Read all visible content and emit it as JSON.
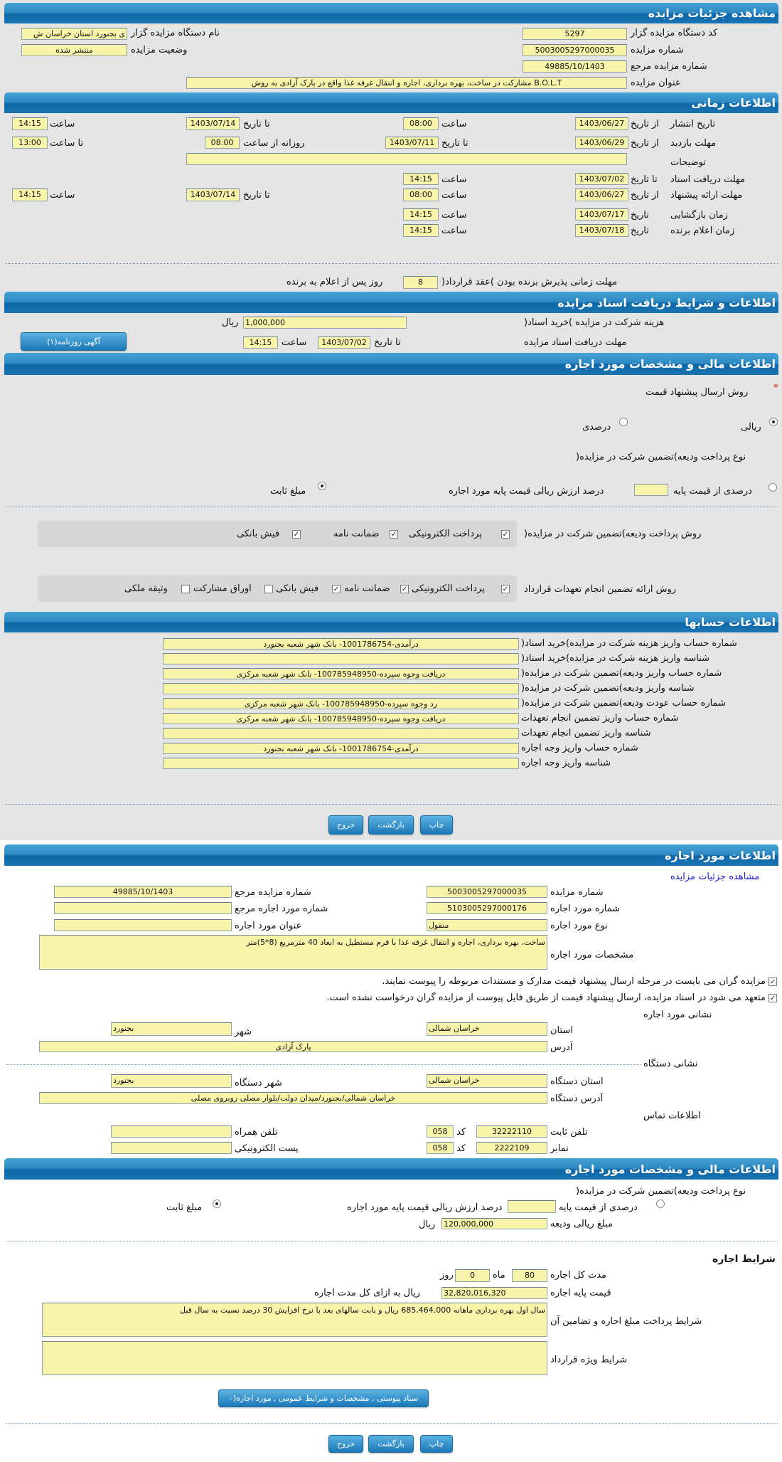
{
  "colors": {
    "header": "#1a74b2",
    "field": "#f8f4aa",
    "panel": "#e5e5e5",
    "link": "#1a1adb",
    "required": "#dd0000"
  },
  "details": {
    "header": "مشاهده جزئیات مزایده",
    "org_code": {
      "label": "کد دستگاه مزایده گزار",
      "value": "5297"
    },
    "org_name": {
      "label": "نام دستگاه مزایده گزار",
      "value": "ی بجنورد استان خراسان ش"
    },
    "auction_no": {
      "label": "شماره مزایده",
      "value": "5003005297000035"
    },
    "status": {
      "label": "وضعیت مزایده",
      "value": "منتشر شده"
    },
    "ref_no": {
      "label": "شماره مزایده مرجع",
      "value": "49885/10/1403"
    },
    "title": {
      "label": "عنوان مزایده",
      "value": "B.O.L.T مشارکت در ساخت، بهره برداری، اجاره و انتقال غرفه غذا واقع در پارک آزادی  به روش"
    }
  },
  "timing": {
    "header": "اطلاعات زمانی",
    "publish": {
      "label": "تاریخ انتشار",
      "from_label": "از تاریخ",
      "from_date": "1403/06/27",
      "from_time_label": "ساعت",
      "from_time": "08:00",
      "to_label": "تا تاریخ",
      "to_date": "1403/07/14",
      "to_time_label": "ساعت",
      "to_time": "14:15"
    },
    "visit": {
      "label": "مهلت بازدید",
      "from_label": "از تاریخ",
      "from_date": "1403/06/29",
      "to_label": "تا تاریخ",
      "to_date": "1403/07/11",
      "daily_label": "روزانه از ساعت",
      "daily_from": "08:00",
      "daily_to_label": "تا ساعت",
      "daily_to": "13:00"
    },
    "notes": {
      "label": "توضیحات",
      "value": ""
    },
    "docs": {
      "label": "مهلت دریافت اسناد",
      "to_label": "تا تاریخ",
      "date": "1403/07/02",
      "time_label": "ساعت",
      "time": "14:15"
    },
    "offer": {
      "label": "مهلت ارائه پیشنهاد",
      "from_label": "از تاریخ",
      "from_date": "1403/06/27",
      "from_time_label": "ساعت",
      "from_time": "08:00",
      "to_label": "تا تاریخ",
      "to_date": "1403/07/14",
      "to_time_label": "ساعت",
      "to_time": "14:15"
    },
    "opening": {
      "label": "زمان بازگشایی",
      "date_label": "تاریخ",
      "date": "1403/07/17",
      "time_label": "ساعت",
      "time": "14:15"
    },
    "winner": {
      "label": "زمان اعلام برنده",
      "date_label": "تاریخ",
      "date": "1403/07/18",
      "time_label": "ساعت",
      "time": "14:15"
    },
    "acceptance": {
      "label": "مهلت زمانی پذیرش برنده بودن )عقد قرارداد(",
      "value": "8",
      "suffix": "روز پس از اعلام به برنده"
    }
  },
  "docs": {
    "header": "اطلاعات و شرایط دریافت اسناد مزایده",
    "fee_label": "هزینه شرکت در مزایده )خرید اسناد(",
    "fee": "1,000,000",
    "fee_unit": "ریال",
    "deadline_label": "مهلت دریافت اسناد مزایده",
    "to_label": "تا تاریخ",
    "date": "1403/07/02",
    "time_label": "ساعت",
    "time": "14:15",
    "ad_button": "آگهی روزنامه(۱)"
  },
  "finance": {
    "header": "اطلاعات مالی و مشخصات مورد اجاره",
    "required_mark": "*",
    "price_method_label": "روش ارسال پیشنهاد قیمت",
    "price_rial": {
      "label": "ریالی",
      "checked": true
    },
    "price_percent": {
      "label": "درصدی",
      "checked": false
    },
    "deposit_type_label": "نوع پرداخت ودیعه)تضمین شرکت در مزایده(",
    "deposit_percent": {
      "label": "درصدی از قیمت پایه",
      "checked": false,
      "value": "",
      "suffix": "درصد ارزش ریالی قیمت پایه مورد اجاره"
    },
    "deposit_fixed": {
      "label": "مبلغ ثابت",
      "checked": true
    },
    "deposit_methods": {
      "label": "روش پرداخت ودیعه)تضمین شرکت در مزایده(",
      "items": [
        {
          "label": "پرداخت الکترونیکی",
          "checked": true
        },
        {
          "label": "ضمانت نامه",
          "checked": true
        },
        {
          "label": "فیش بانکی",
          "checked": true
        }
      ]
    },
    "guarantee_methods": {
      "label": "روش ارائه تضمین انجام تعهدات قرارداد",
      "items": [
        {
          "label": "پرداخت الکترونیکی",
          "checked": true
        },
        {
          "label": "ضمانت نامه",
          "checked": true
        },
        {
          "label": "فیش بانکی",
          "checked": true
        },
        {
          "label": "اوراق مشارکت",
          "checked": false
        },
        {
          "label": "وثیقه ملکی",
          "checked": false
        }
      ]
    }
  },
  "accounts": {
    "header": "اطلاعات حسابها",
    "rows": [
      {
        "label": "شماره حساب واریز هزینه شرکت در مزایده)خرید اسناد(",
        "value": "درآمدی-1001786754- بانک شهر شعبه بجنورد"
      },
      {
        "label": "شناسه واریز هزینه شرکت در مزایده)خرید اسناد(",
        "value": ""
      },
      {
        "label": "شماره حساب واریز ودیعه)تضمین شرکت در مزایده(",
        "value": "دریافت وجوه سپرده-100785948950- بانک شهر شعبه مرکزی"
      },
      {
        "label": "شناسه واریز ودیعه)تضمین شرکت در مزایده(",
        "value": ""
      },
      {
        "label": "شماره حساب عودت ودیعه)تضمین شرکت در مزایده(",
        "value": "رد وجوه سپرده-100785948950- بانک شهر شعبه مرکزی"
      },
      {
        "label": "شماره حساب واریز تضمین انجام تعهدات",
        "value": "دریافت وجوه سپرده-100785948950- بانک شهر شعبه مرکزی"
      },
      {
        "label": "شناسه واریز تضمین انجام تعهدات",
        "value": ""
      },
      {
        "label": "شماره حساب واریز وجه اجاره",
        "value": "درآمدی-1001786754- بانک شهر شعبه بجنورد"
      },
      {
        "label": "شناسه واریز وجه اجاره",
        "value": ""
      }
    ]
  },
  "buttons": {
    "print": "چاپ",
    "back": "بازگشت",
    "exit": "خروج"
  },
  "lease": {
    "header": "اطلاعات مورد اجاره",
    "details_link": "مشاهده جزئیات مزایده",
    "auction_no": {
      "label": "شماره مزایده",
      "value": "5003005297000035"
    },
    "ref_no": {
      "label": "شماره مزایده مرجع",
      "value": "49885/10/1403"
    },
    "item_no": {
      "label": "شماره مورد اجاره",
      "value": "5103005297000176"
    },
    "item_ref": {
      "label": "شماره مورد اجاره مرجع",
      "value": ""
    },
    "item_type": {
      "label": "نوع مورد اجاره",
      "value": "منقول"
    },
    "item_title": {
      "label": "عنوان مورد اجاره",
      "value": ""
    },
    "specs": {
      "label": "مشخصات مورد اجاره",
      "value": "ساخت، بهره برداری، اجاره و انتقال غرفه غذا  با فرم مستطیل به ابعاد 40 مترمربع (8*5)متر"
    },
    "checks": [
      {
        "label": "مزایده گران می بایست در مرحله ارسال پیشنهاد قیمت مدارک و مستندات مربوطه را پیوست نمایند.",
        "checked": true
      },
      {
        "label": "متعهد می شود در اسناد مزایده، ارسال پیشنهاد قیمت از طریق فایل پیوست از مزایده گران درخواست نشده است.",
        "checked": true
      }
    ],
    "address_title": "نشانی مورد اجاره",
    "province": {
      "label": "استان",
      "value": "خراسان شمالی"
    },
    "city": {
      "label": "شهر",
      "value": "بجنورد"
    },
    "address": {
      "label": "آدرس",
      "value": "پارک آزادی"
    },
    "org_address_title": "نشانی دستگاه",
    "org_province": {
      "label": "استان دستگاه",
      "value": "خراسان شمالی"
    },
    "org_city": {
      "label": "شهر دستگاه",
      "value": "بجنورد"
    },
    "org_address": {
      "label": "آدرس دستگاه",
      "value": "خراسان شمالی/بجنورد/میدان دولت/بلوار مصلی روبروی مصلی"
    },
    "contact_title": "اطلاعات تماس",
    "phone": {
      "label": "تلفن ثابت",
      "value": "32222110",
      "code_label": "کد",
      "code": "058"
    },
    "mobile": {
      "label": "تلفن همراه",
      "value": ""
    },
    "fax": {
      "label": "نمابر",
      "value": "2222109",
      "code_label": "کد",
      "code": "058"
    },
    "email": {
      "label": "پست الکترونیکی",
      "value": ""
    }
  },
  "lease_finance": {
    "header": "اطلاعات مالی و مشخصات مورد اجاره",
    "deposit_type_label": "نوع پرداخت ودیعه)تضمین شرکت در مزایده(",
    "deposit_percent": {
      "label": "درصدی از قیمت پایه",
      "checked": false,
      "value": "",
      "suffix": "درصد ارزش ریالی قیمت پایه مورد اجاره"
    },
    "deposit_fixed": {
      "label": "مبلغ ثابت",
      "checked": true
    },
    "deposit_amount_label": "مبلغ ریالی ودیعه",
    "deposit_amount": "120,000,000",
    "deposit_unit": "ریال",
    "terms_title": "شرایط اجاره",
    "duration_label": "مدت کل اجاره",
    "months": "80",
    "months_label": "ماه",
    "days": "0",
    "days_label": "روز",
    "base_price_label": "قیمت پایه اجاره",
    "base_price": "32,820,016,320",
    "base_price_suffix": "ریال به ازای کل مدت اجاره",
    "payment_terms_label": "شرایط پرداخت مبلغ اجاره و تضامین آن",
    "payment_terms": "سال اول بهره برداری ماهانه 685.464.000 ریال و بابت سالهای بعد با نرخ افزایش 30 درصد نسبت به سال قبل",
    "special_terms_label": "شرایط ویژه قرارداد",
    "special_terms": "",
    "attachments_button": "سناد پیوستی , مشخصات و شرایط عمومی , مورد اجاره(۰"
  }
}
